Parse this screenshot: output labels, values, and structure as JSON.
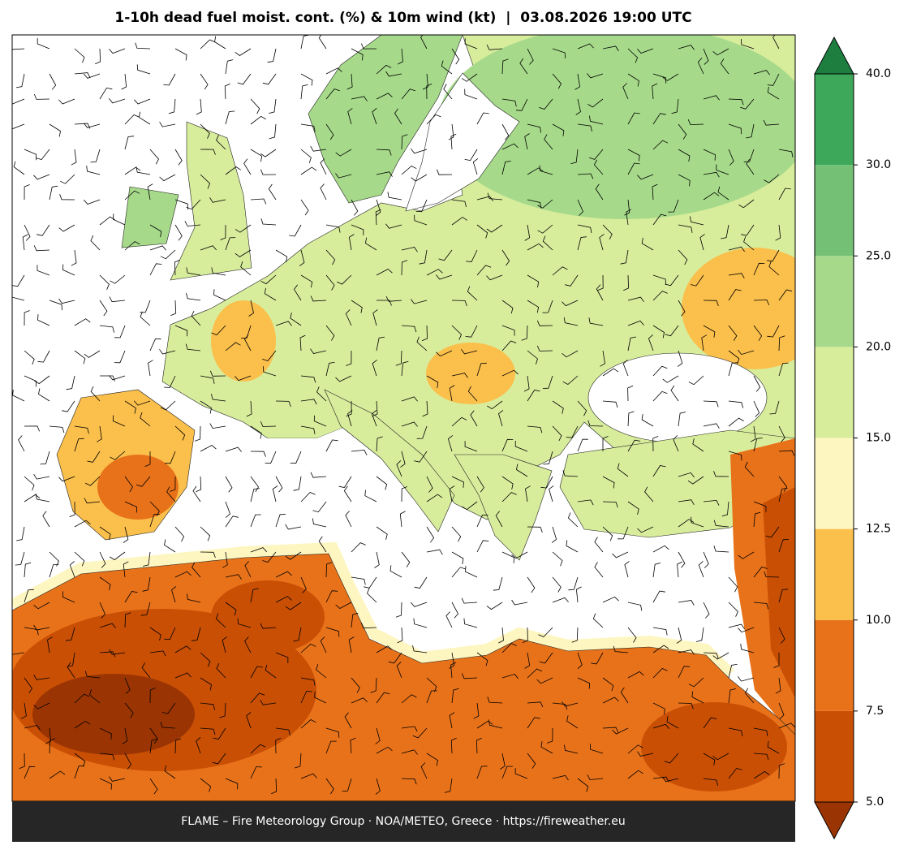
{
  "header": {
    "title": "1-10h dead fuel moist. cont. (%) & 10m wind (kt)  |  03.08.2026 19:00 UTC"
  },
  "colorbar": {
    "ticks": [
      {
        "value": 5,
        "label": "5.0"
      },
      {
        "value": 7.5,
        "label": "7.5"
      },
      {
        "value": 10,
        "label": "10.0"
      },
      {
        "value": 12.5,
        "label": "12.5"
      },
      {
        "value": 15,
        "label": "15.0"
      },
      {
        "value": 20,
        "label": "20.0"
      },
      {
        "value": 25,
        "label": "25.0"
      },
      {
        "value": 30,
        "label": "30.0"
      },
      {
        "value": 40,
        "label": "40.0"
      }
    ],
    "colors": [
      "#c94f04",
      "#e8721a",
      "#fbbf4b",
      "#fef6c0",
      "#d7ed9c",
      "#a6da8a",
      "#74c175",
      "#3da85a"
    ],
    "under_color": "#9a3503",
    "over_color": "#1e7e40"
  },
  "footer": {
    "text": "FLAME – Fire Meteorology Group · NOA/METEO, Greece · https://fireweather.eu"
  }
}
